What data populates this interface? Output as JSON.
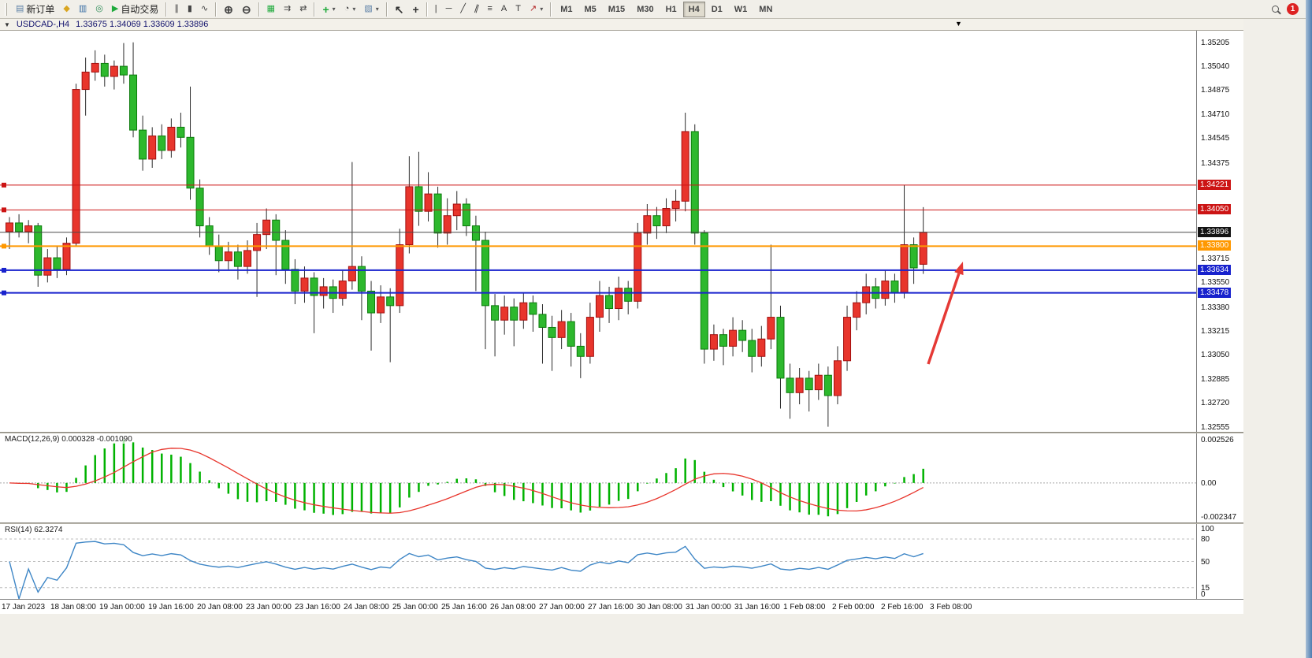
{
  "toolbar": {
    "groups": [
      {
        "items": [
          {
            "name": "new-order",
            "label": "新订单",
            "icon": "new-order-icon"
          },
          {
            "name": "metaeditor",
            "icon": "metaeditor-icon"
          },
          {
            "name": "market-watch",
            "icon": "market-watch-icon"
          },
          {
            "name": "navigator",
            "icon": "navigator-icon"
          },
          {
            "name": "autotrading",
            "label": "自动交易",
            "icon": "autotrading-icon"
          }
        ]
      },
      {
        "items": [
          {
            "name": "bar-chart",
            "icon": "bar-chart-icon"
          },
          {
            "name": "candlestick-chart",
            "icon": "candlestick-icon"
          },
          {
            "name": "line-chart",
            "icon": "line-chart-icon"
          }
        ]
      },
      {
        "items": [
          {
            "name": "zoom-in",
            "icon": "zoom-in-icon"
          },
          {
            "name": "zoom-out",
            "icon": "zoom-out-icon"
          }
        ]
      },
      {
        "items": [
          {
            "name": "tile-windows",
            "icon": "tile-windows-icon"
          },
          {
            "name": "auto-scroll",
            "icon": "auto-scroll-icon"
          },
          {
            "name": "chart-shift",
            "icon": "chart-shift-icon"
          }
        ]
      },
      {
        "items": [
          {
            "name": "indicators",
            "icon": "indicators-icon",
            "dropdown": true
          },
          {
            "name": "periods",
            "icon": "periods-icon",
            "dropdown": true
          },
          {
            "name": "templates",
            "icon": "templates-icon",
            "dropdown": true
          }
        ]
      },
      {
        "items": [
          {
            "name": "cursor",
            "icon": "cursor-icon"
          },
          {
            "name": "crosshair",
            "icon": "crosshair-icon"
          }
        ]
      },
      {
        "items": [
          {
            "name": "vertical-line",
            "icon": "vertical-line-icon"
          },
          {
            "name": "horizontal-line",
            "icon": "horizontal-line-icon"
          },
          {
            "name": "trendline",
            "icon": "trendline-icon"
          },
          {
            "name": "equidistant-channel",
            "icon": "channel-icon"
          },
          {
            "name": "fibonacci",
            "icon": "fibonacci-icon"
          },
          {
            "name": "text",
            "icon": "text-icon"
          },
          {
            "name": "text-label",
            "icon": "text-label-icon"
          },
          {
            "name": "arrows",
            "icon": "arrows-icon",
            "dropdown": true
          }
        ]
      }
    ],
    "timeframes": [
      {
        "label": "M1"
      },
      {
        "label": "M5"
      },
      {
        "label": "M15"
      },
      {
        "label": "M30"
      },
      {
        "label": "H1"
      },
      {
        "label": "H4",
        "active": true
      },
      {
        "label": "D1"
      },
      {
        "label": "W1"
      },
      {
        "label": "MN"
      }
    ],
    "notification_count": "1"
  },
  "chart_data": {
    "type": "candlestick",
    "title": "USDCAD-,H4",
    "ohlc_text": "1.33675 1.34069 1.33609 1.33896",
    "ylim": [
      1.3252,
      1.35285
    ],
    "price_ticks": [
      {
        "label": "1.35205",
        "value": 1.35205
      },
      {
        "label": "1.35040",
        "value": 1.3504
      },
      {
        "label": "1.34875",
        "value": 1.34875
      },
      {
        "label": "1.34710",
        "value": 1.3471
      },
      {
        "label": "1.34545",
        "value": 1.34545
      },
      {
        "label": "1.34375",
        "value": 1.34375
      },
      {
        "label": "1.33715",
        "value": 1.33715
      },
      {
        "label": "1.33550",
        "value": 1.3355
      },
      {
        "label": "1.33380",
        "value": 1.3338
      },
      {
        "label": "1.33215",
        "value": 1.33215
      },
      {
        "label": "1.33050",
        "value": 1.3305
      },
      {
        "label": "1.32885",
        "value": 1.32885
      },
      {
        "label": "1.32720",
        "value": 1.3272
      },
      {
        "label": "1.32555",
        "value": 1.32555
      }
    ],
    "hlines": [
      {
        "label": "1.34221",
        "value": 1.34221,
        "color": "#cc1414",
        "badge": "#cc1414",
        "width": 1
      },
      {
        "label": "1.34050",
        "value": 1.3405,
        "color": "#cc1414",
        "badge": "#cc1414",
        "width": 1
      },
      {
        "label": "1.33896",
        "value": 1.33896,
        "color": "#4a4a4a",
        "badge": "#141414",
        "width": 1,
        "bid": true
      },
      {
        "label": "1.33800",
        "value": 1.338,
        "color": "#ff9800",
        "badge": "#ff9800",
        "width": 2
      },
      {
        "label": "1.33634",
        "value": 1.33634,
        "color": "#1822cd",
        "badge": "#1822cd",
        "width": 2
      },
      {
        "label": "1.33478",
        "value": 1.33478,
        "color": "#1822cd",
        "badge": "#1822cd",
        "width": 2
      }
    ],
    "candles": [
      [
        1.339,
        1.34,
        1.3378,
        1.3396
      ],
      [
        1.3396,
        1.3402,
        1.3386,
        1.339
      ],
      [
        1.339,
        1.3398,
        1.3382,
        1.3394
      ],
      [
        1.3394,
        1.3396,
        1.3352,
        1.336
      ],
      [
        1.336,
        1.3378,
        1.3355,
        1.3372
      ],
      [
        1.3372,
        1.338,
        1.3358,
        1.3364
      ],
      [
        1.3364,
        1.3386,
        1.336,
        1.3382
      ],
      [
        1.3382,
        1.3492,
        1.338,
        1.3488
      ],
      [
        1.3488,
        1.351,
        1.347,
        1.35
      ],
      [
        1.35,
        1.3515,
        1.3494,
        1.3506
      ],
      [
        1.3506,
        1.3512,
        1.349,
        1.3497
      ],
      [
        1.3497,
        1.3508,
        1.3488,
        1.3504
      ],
      [
        1.3504,
        1.352,
        1.3492,
        1.3498
      ],
      [
        1.3498,
        1.35205,
        1.3455,
        1.346
      ],
      [
        1.346,
        1.347,
        1.3432,
        1.344
      ],
      [
        1.344,
        1.3462,
        1.3434,
        1.3456
      ],
      [
        1.3456,
        1.3464,
        1.344,
        1.3446
      ],
      [
        1.3446,
        1.3468,
        1.3441,
        1.3462
      ],
      [
        1.3462,
        1.3472,
        1.3448,
        1.3455
      ],
      [
        1.3455,
        1.349,
        1.3412,
        1.342
      ],
      [
        1.342,
        1.3426,
        1.3386,
        1.3394
      ],
      [
        1.3394,
        1.34,
        1.3374,
        1.338
      ],
      [
        1.338,
        1.3388,
        1.3362,
        1.337
      ],
      [
        1.337,
        1.3383,
        1.3364,
        1.3376
      ],
      [
        1.3376,
        1.3381,
        1.3357,
        1.3366
      ],
      [
        1.3366,
        1.3384,
        1.3361,
        1.3377
      ],
      [
        1.3377,
        1.3396,
        1.3345,
        1.3388
      ],
      [
        1.3388,
        1.3406,
        1.3378,
        1.3398
      ],
      [
        1.3398,
        1.3402,
        1.336,
        1.3384
      ],
      [
        1.3384,
        1.3391,
        1.3354,
        1.3364
      ],
      [
        1.3364,
        1.3371,
        1.334,
        1.3349
      ],
      [
        1.3349,
        1.3366,
        1.3341,
        1.3358
      ],
      [
        1.3358,
        1.3362,
        1.332,
        1.3346
      ],
      [
        1.3346,
        1.3358,
        1.3337,
        1.3352
      ],
      [
        1.3352,
        1.3357,
        1.3334,
        1.3344
      ],
      [
        1.3344,
        1.3363,
        1.3339,
        1.3356
      ],
      [
        1.3356,
        1.3438,
        1.335,
        1.3366
      ],
      [
        1.3366,
        1.3373,
        1.3329,
        1.3349
      ],
      [
        1.3349,
        1.3356,
        1.3308,
        1.3334
      ],
      [
        1.3334,
        1.3353,
        1.3327,
        1.3345
      ],
      [
        1.3345,
        1.3351,
        1.33,
        1.3339
      ],
      [
        1.3339,
        1.3392,
        1.3334,
        1.3381
      ],
      [
        1.3381,
        1.3442,
        1.3375,
        1.3421
      ],
      [
        1.3421,
        1.3445,
        1.3394,
        1.3404
      ],
      [
        1.3404,
        1.3431,
        1.3397,
        1.3416
      ],
      [
        1.3416,
        1.3421,
        1.3379,
        1.3389
      ],
      [
        1.3389,
        1.3413,
        1.3381,
        1.3401
      ],
      [
        1.3401,
        1.3418,
        1.3391,
        1.3409
      ],
      [
        1.3409,
        1.3413,
        1.3387,
        1.3394
      ],
      [
        1.3394,
        1.3401,
        1.3349,
        1.3384
      ],
      [
        1.3384,
        1.339,
        1.3309,
        1.3339
      ],
      [
        1.3339,
        1.3347,
        1.3304,
        1.3329
      ],
      [
        1.3329,
        1.3346,
        1.3319,
        1.3338
      ],
      [
        1.3338,
        1.3344,
        1.3311,
        1.3329
      ],
      [
        1.3329,
        1.3348,
        1.3323,
        1.3341
      ],
      [
        1.3341,
        1.3346,
        1.3321,
        1.3333
      ],
      [
        1.3333,
        1.334,
        1.3299,
        1.3324
      ],
      [
        1.3324,
        1.3332,
        1.3294,
        1.3317
      ],
      [
        1.3317,
        1.3336,
        1.3309,
        1.3328
      ],
      [
        1.3328,
        1.3334,
        1.3297,
        1.3311
      ],
      [
        1.3311,
        1.332,
        1.3289,
        1.3304
      ],
      [
        1.3304,
        1.3341,
        1.3299,
        1.3331
      ],
      [
        1.3331,
        1.3356,
        1.3321,
        1.3346
      ],
      [
        1.3346,
        1.3352,
        1.3327,
        1.3337
      ],
      [
        1.3337,
        1.3359,
        1.3329,
        1.3351
      ],
      [
        1.3351,
        1.3356,
        1.3333,
        1.3342
      ],
      [
        1.3342,
        1.3396,
        1.3337,
        1.3389
      ],
      [
        1.3389,
        1.3409,
        1.3381,
        1.3401
      ],
      [
        1.3401,
        1.3407,
        1.3385,
        1.3394
      ],
      [
        1.3394,
        1.3413,
        1.3389,
        1.3406
      ],
      [
        1.3406,
        1.3419,
        1.3397,
        1.3411
      ],
      [
        1.3411,
        1.3472,
        1.3404,
        1.3459
      ],
      [
        1.3459,
        1.3464,
        1.3381,
        1.3389
      ],
      [
        1.3389,
        1.3391,
        1.3299,
        1.3309
      ],
      [
        1.3309,
        1.3326,
        1.3301,
        1.3319
      ],
      [
        1.3319,
        1.3323,
        1.3298,
        1.3311
      ],
      [
        1.3311,
        1.3331,
        1.3304,
        1.3322
      ],
      [
        1.3322,
        1.3329,
        1.3307,
        1.3315
      ],
      [
        1.3315,
        1.3323,
        1.3293,
        1.3304
      ],
      [
        1.3304,
        1.3325,
        1.3297,
        1.3316
      ],
      [
        1.3316,
        1.3381,
        1.3309,
        1.3331
      ],
      [
        1.3331,
        1.3339,
        1.3268,
        1.3289
      ],
      [
        1.3289,
        1.3299,
        1.3261,
        1.3279
      ],
      [
        1.3279,
        1.3296,
        1.3271,
        1.3289
      ],
      [
        1.3289,
        1.3294,
        1.3266,
        1.3281
      ],
      [
        1.3281,
        1.3299,
        1.3274,
        1.3291
      ],
      [
        1.3291,
        1.3297,
        1.32555,
        1.3277
      ],
      [
        1.3277,
        1.3311,
        1.3271,
        1.3301
      ],
      [
        1.3301,
        1.3339,
        1.3294,
        1.3331
      ],
      [
        1.3331,
        1.3349,
        1.3322,
        1.3341
      ],
      [
        1.3341,
        1.3361,
        1.3333,
        1.3352
      ],
      [
        1.3352,
        1.3358,
        1.3337,
        1.3344
      ],
      [
        1.3344,
        1.3363,
        1.3339,
        1.3356
      ],
      [
        1.3356,
        1.3361,
        1.3341,
        1.3348
      ],
      [
        1.3348,
        1.34221,
        1.3344,
        1.3381
      ],
      [
        1.3381,
        1.3386,
        1.3354,
        1.3365
      ],
      [
        1.33675,
        1.34069,
        1.33609,
        1.33896
      ]
    ],
    "time_labels": [
      "17 Jan 2023",
      "18 Jan 08:00",
      "19 Jan 00:00",
      "19 Jan 16:00",
      "20 Jan 08:00",
      "23 Jan 00:00",
      "23 Jan 16:00",
      "24 Jan 08:00",
      "25 Jan 00:00",
      "25 Jan 16:00",
      "26 Jan 08:00",
      "27 Jan 00:00",
      "27 Jan 16:00",
      "30 Jan 08:00",
      "31 Jan 00:00",
      "31 Jan 16:00",
      "1 Feb 08:00",
      "2 Feb 00:00",
      "2 Feb 16:00",
      "3 Feb 08:00"
    ],
    "indicators": {
      "macd": {
        "title_text": "MACD(12,26,9) 0.000328 -0.001090",
        "fast": 12,
        "slow": 26,
        "signal": 9,
        "scale_labels": [
          "0.002526",
          "0.00",
          "-0.002347"
        ]
      },
      "rsi": {
        "title_text": "RSI(14) 62.3274",
        "period": 14,
        "levels": [
          80,
          50,
          15
        ],
        "scale_labels": [
          {
            "text": "100",
            "value": 100
          },
          {
            "text": "80",
            "value": 80
          },
          {
            "text": "50",
            "value": 50
          },
          {
            "text": "15",
            "value": 15
          },
          {
            "text": "0",
            "value": 0
          }
        ]
      }
    },
    "arrow": {
      "from": [
        1178,
        423
      ],
      "to": [
        1222,
        293
      ],
      "color": "#e53935"
    },
    "colors": {
      "up_fill": "#e8352c",
      "up_stroke": "#a31010",
      "down_fill": "#2db82d",
      "down_stroke": "#0b7c0b",
      "wick": "#2b2b2b",
      "macd_hist": "#00b200",
      "macd_signal": "#e8352c",
      "rsi_line": "#3e86c6",
      "background": "#ffffff"
    }
  }
}
